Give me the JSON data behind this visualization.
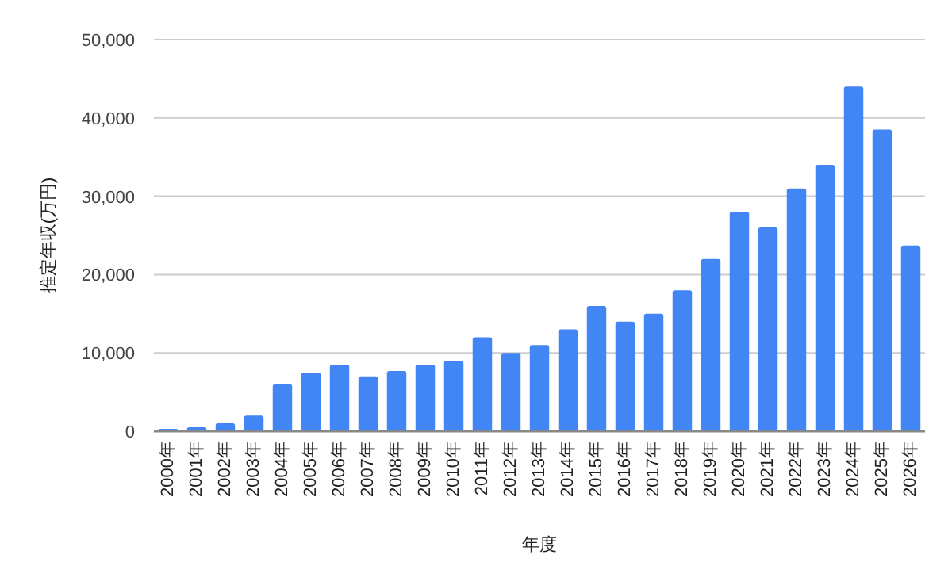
{
  "chart_data": {
    "type": "bar",
    "xlabel": "年度",
    "ylabel": "推定年収(万円)",
    "categories": [
      "2000年",
      "2001年",
      "2002年",
      "2003年",
      "2004年",
      "2005年",
      "2006年",
      "2007年",
      "2008年",
      "2009年",
      "2010年",
      "2011年",
      "2012年",
      "2013年",
      "2014年",
      "2015年",
      "2016年",
      "2017年",
      "2018年",
      "2019年",
      "2020年",
      "2021年",
      "2022年",
      "2023年",
      "2024年",
      "2025年",
      "2026年"
    ],
    "values": [
      300,
      500,
      1000,
      2000,
      6000,
      7500,
      8500,
      7000,
      7700,
      8500,
      9000,
      12000,
      10000,
      11000,
      13000,
      16000,
      14000,
      15000,
      18000,
      22000,
      28000,
      26000,
      31000,
      34000,
      44000,
      38500,
      23700
    ],
    "color": "#4285f4",
    "ylim": [
      0,
      50000
    ],
    "yticks": [
      {
        "value": 0,
        "label": "0"
      },
      {
        "value": 10000,
        "label": "10,000"
      },
      {
        "value": 20000,
        "label": "20,000"
      },
      {
        "value": 30000,
        "label": "30,000"
      },
      {
        "value": 40000,
        "label": "40,000"
      },
      {
        "value": 50000,
        "label": "50,000"
      }
    ],
    "grid": "y"
  }
}
